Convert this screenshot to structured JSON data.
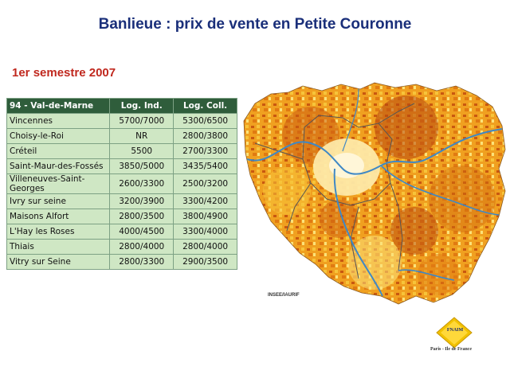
{
  "title": "Banlieue : prix de vente en Petite Couronne",
  "subtitle": "1er semestre 2007",
  "table": {
    "headers": [
      "94 - Val-de-Marne",
      "Log. Ind.",
      "Log. Coll."
    ],
    "rows": [
      [
        "Vincennes",
        "5700/7000",
        "5300/6500"
      ],
      [
        "Choisy-le-Roi",
        "NR",
        "2800/3800"
      ],
      [
        "Créteil",
        "5500",
        "2700/3300"
      ],
      [
        "Saint-Maur-des-Fossés",
        "3850/5000",
        "3435/5400"
      ],
      [
        "Villeneuves-Saint-Georges",
        "2600/3300",
        "2500/3200"
      ],
      [
        "Ivry sur seine",
        "3200/3900",
        "3300/4200"
      ],
      [
        "Maisons Alfort",
        "2800/3500",
        "3800/4900"
      ],
      [
        "L'Hay les Roses",
        "4000/4500",
        "3300/4000"
      ],
      [
        "Thiais",
        "2800/4000",
        "2800/4000"
      ],
      [
        "Vitry sur Seine",
        "2800/3300",
        "2900/3500"
      ]
    ]
  },
  "map": {
    "credit": "INSEE/IAURIF",
    "colors": {
      "dark": "#b8470e",
      "mid": "#e07a12",
      "light": "#f5b52a",
      "pale": "#fbe27a",
      "center": "#fff6d8",
      "river": "#3f88c5"
    }
  },
  "logo": {
    "text": "FNAIM",
    "subtext": "Paris - Ile de France"
  }
}
